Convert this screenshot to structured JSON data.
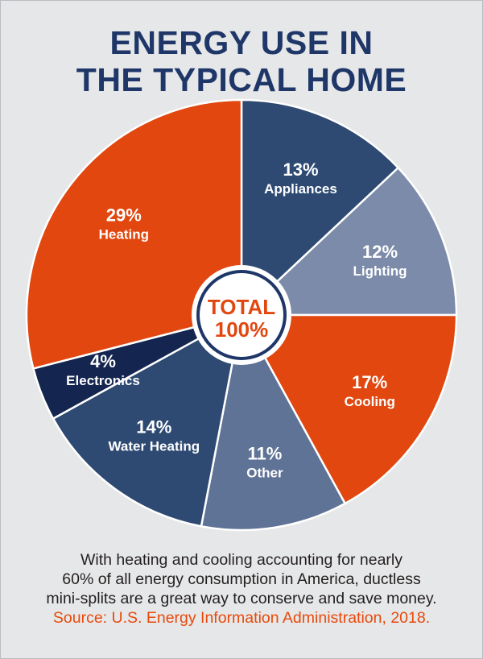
{
  "title": {
    "line1": "ENERGY USE IN",
    "line2": "THE TYPICAL HOME"
  },
  "center": {
    "line1": "TOTAL",
    "line2": "100%"
  },
  "description": {
    "line1": "With heating and cooling accounting for nearly",
    "line2": "60% of all energy consumption in America, ductless",
    "line3": "mini-splits are a great way to conserve and save money.",
    "source": "Source: U.S. Energy Information Administration, 2018."
  },
  "colors": {
    "background": "#e6e7e8",
    "title": "#1f3768",
    "orange": "#e1470f",
    "source_text": "#e84a0c",
    "center_ring": "#1f3768"
  },
  "chart_data": {
    "type": "pie",
    "title": "ENERGY USE IN THE TYPICAL HOME",
    "unit": "%",
    "slices": [
      {
        "label": "Appliances",
        "value": 13,
        "display": "13%",
        "color": "#2e4a72"
      },
      {
        "label": "Lighting",
        "value": 12,
        "display": "12%",
        "color": "#7b8ba9"
      },
      {
        "label": "Cooling",
        "value": 17,
        "display": "17%",
        "color": "#e1470f"
      },
      {
        "label": "Other",
        "value": 11,
        "display": "11%",
        "color": "#5f7396"
      },
      {
        "label": "Water Heating",
        "value": 14,
        "display": "14%",
        "color": "#2e4a72"
      },
      {
        "label": "Electronics",
        "value": 4,
        "display": "4%",
        "color": "#14254f"
      },
      {
        "label": "Heating",
        "value": 29,
        "display": "29%",
        "color": "#e1470f"
      }
    ],
    "start": "12 o'clock",
    "direction": "clockwise"
  }
}
